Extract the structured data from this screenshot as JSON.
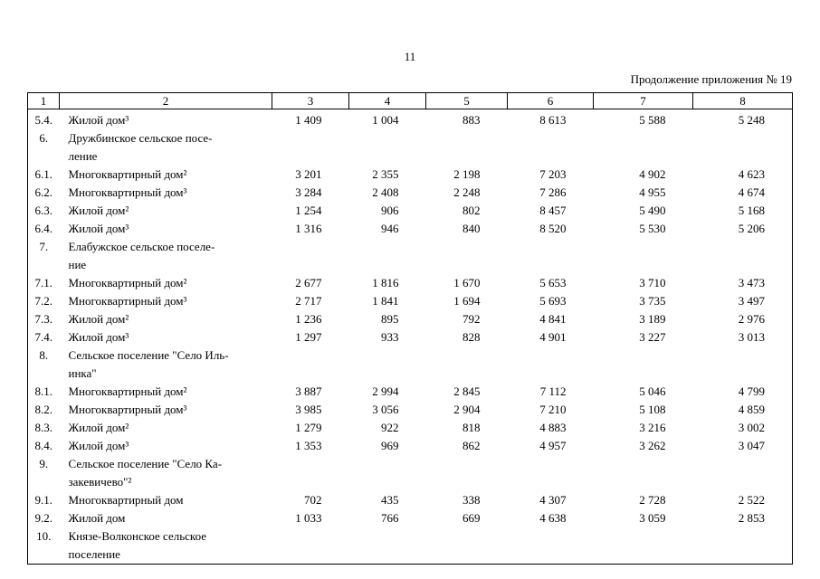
{
  "page": {
    "number": "11",
    "caption": "Продолжение приложения № 19"
  },
  "table": {
    "header": [
      "1",
      "2",
      "3",
      "4",
      "5",
      "6",
      "7",
      "8"
    ],
    "rows": [
      {
        "num": "5.4.",
        "name": "Жилой дом³",
        "values": [
          "1 409",
          "1 004",
          "883",
          "8 613",
          "5 588",
          "5 248"
        ]
      },
      {
        "num": "6.",
        "name": "Дружбинское сельское посе-\nление",
        "values": []
      },
      {
        "num": "6.1.",
        "name": "Многоквартирный дом²",
        "values": [
          "3 201",
          "2 355",
          "2 198",
          "7 203",
          "4 902",
          "4 623"
        ]
      },
      {
        "num": "6.2.",
        "name": "Многоквартирный дом³",
        "values": [
          "3 284",
          "2 408",
          "2 248",
          "7 286",
          "4 955",
          "4 674"
        ]
      },
      {
        "num": "6.3.",
        "name": "Жилой дом²",
        "values": [
          "1 254",
          "906",
          "802",
          "8 457",
          "5 490",
          "5 168"
        ]
      },
      {
        "num": "6.4.",
        "name": "Жилой дом³",
        "values": [
          "1 316",
          "946",
          "840",
          "8 520",
          "5 530",
          "5 206"
        ]
      },
      {
        "num": "7.",
        "name": "Елабужское сельское поселе-\nние",
        "values": []
      },
      {
        "num": "7.1.",
        "name": "Многоквартирный дом²",
        "values": [
          "2 677",
          "1 816",
          "1 670",
          "5 653",
          "3 710",
          "3 473"
        ]
      },
      {
        "num": "7.2.",
        "name": "Многоквартирный дом³",
        "values": [
          "2 717",
          "1 841",
          "1 694",
          "5 693",
          "3 735",
          "3 497"
        ]
      },
      {
        "num": "7.3.",
        "name": "Жилой дом²",
        "values": [
          "1 236",
          "895",
          "792",
          "4 841",
          "3 189",
          "2 976"
        ]
      },
      {
        "num": "7.4.",
        "name": "Жилой дом³",
        "values": [
          "1 297",
          "933",
          "828",
          "4 901",
          "3 227",
          "3 013"
        ]
      },
      {
        "num": "8.",
        "name": "Сельское поселение \"Село Иль-\nинка\"",
        "values": []
      },
      {
        "num": "8.1.",
        "name": "Многоквартирный дом²",
        "values": [
          "3 887",
          "2 994",
          "2 845",
          "7 112",
          "5 046",
          "4 799"
        ]
      },
      {
        "num": "8.2.",
        "name": "Многоквартирный дом³",
        "values": [
          "3 985",
          "3 056",
          "2 904",
          "7 210",
          "5 108",
          "4 859"
        ]
      },
      {
        "num": "8.3.",
        "name": "Жилой дом²",
        "values": [
          "1 279",
          "922",
          "818",
          "4 883",
          "3 216",
          "3 002"
        ]
      },
      {
        "num": "8.4.",
        "name": "Жилой дом³",
        "values": [
          "1 353",
          "969",
          "862",
          "4 957",
          "3 262",
          "3 047"
        ]
      },
      {
        "num": "9.",
        "name": "Сельское поселение \"Село Ка-\nзакевичево\"²",
        "values": []
      },
      {
        "num": "9.1.",
        "name": "Многоквартирный дом",
        "values": [
          "702",
          "435",
          "338",
          "4 307",
          "2 728",
          "2 522"
        ]
      },
      {
        "num": "9.2.",
        "name": "Жилой дом",
        "values": [
          "1 033",
          "766",
          "669",
          "4 638",
          "3 059",
          "2 853"
        ]
      },
      {
        "num": "10.",
        "name": "Князе-Волконское сельское\nпоселение",
        "values": []
      }
    ]
  }
}
